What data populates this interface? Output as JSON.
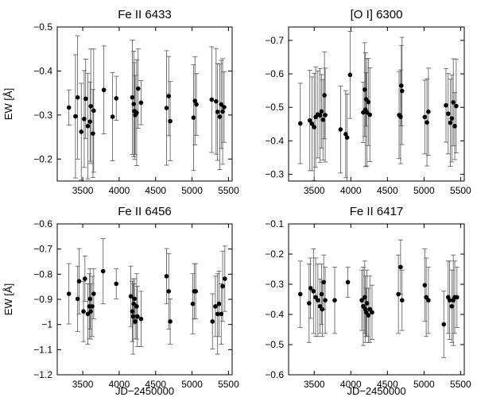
{
  "chart_data": [
    {
      "type": "scatter",
      "title": "Fe II 6433",
      "xlabel": "",
      "ylabel": "EW [Å]",
      "xlim": [
        3150,
        5550
      ],
      "ylim": [
        -0.15,
        -0.5
      ],
      "y_axis_inverted": true,
      "xticks": [
        3500,
        4000,
        4500,
        5000,
        5500
      ],
      "xtick_labels": [
        "3500",
        "4000",
        "4500",
        "5000",
        "5500"
      ],
      "yticks": [
        -0.2,
        -0.3,
        -0.4,
        -0.5
      ],
      "ytick_labels": [
        "−0.2",
        "−0.3",
        "−0.4",
        "−0.5"
      ],
      "series": [
        {
          "x": [
            3310,
            3400,
            3430,
            3480,
            3520,
            3540,
            3570,
            3600,
            3610,
            3640,
            3650,
            3790,
            3910,
            3960,
            4180,
            4200,
            4210,
            4220,
            4240,
            4260,
            4300,
            4650,
            4680,
            4700,
            5020,
            5040,
            5060,
            5270,
            5330,
            5350,
            5380,
            5400,
            5420,
            5440
          ],
          "y": [
            -0.317,
            -0.297,
            -0.34,
            -0.262,
            -0.291,
            -0.337,
            -0.275,
            -0.285,
            -0.32,
            -0.258,
            -0.31,
            -0.357,
            -0.296,
            -0.338,
            -0.34,
            -0.325,
            -0.309,
            -0.3,
            -0.305,
            -0.36,
            -0.328,
            -0.316,
            -0.343,
            -0.286,
            -0.294,
            -0.332,
            -0.324,
            -0.335,
            -0.331,
            -0.307,
            -0.296,
            -0.324,
            -0.308,
            -0.318
          ],
          "yerr": [
            0.04,
            0.14,
            0.14,
            0.11,
            0.11,
            0.09,
            0.12,
            0.09,
            0.13,
            0.1,
            0.14,
            0.1,
            0.1,
            0.05,
            0.13,
            0.12,
            0.11,
            0.09,
            0.12,
            0.09,
            0.05,
            0.13,
            0.09,
            0.09,
            0.12,
            0.1,
            0.07,
            0.12,
            0.12,
            0.11,
            0.12,
            0.1,
            0.12,
            0.08
          ]
        }
      ]
    },
    {
      "type": "scatter",
      "title": "[O I] 6300",
      "xlabel": "",
      "ylabel": "",
      "xlim": [
        3150,
        5550
      ],
      "ylim": [
        -0.28,
        -0.74
      ],
      "y_axis_inverted": true,
      "xticks": [
        3500,
        4000,
        4500,
        5000,
        5500
      ],
      "xtick_labels": [
        "3500",
        "4000",
        "4500",
        "5000",
        "5500"
      ],
      "yticks": [
        -0.3,
        -0.4,
        -0.5,
        -0.6,
        -0.7
      ],
      "ytick_labels": [
        "−0.3",
        "−0.4",
        "−0.5",
        "−0.6",
        "−0.7"
      ],
      "series": [
        {
          "x": [
            3310,
            3440,
            3470,
            3500,
            3520,
            3550,
            3580,
            3600,
            3620,
            3640,
            3650,
            3860,
            3930,
            3950,
            3990,
            4170,
            4190,
            4200,
            4210,
            4220,
            4240,
            4260,
            4660,
            4680,
            4690,
            4700,
            5010,
            5040,
            5060,
            5300,
            5330,
            5360,
            5380,
            5400,
            5420,
            5440
          ],
          "y": [
            -0.452,
            -0.461,
            -0.451,
            -0.441,
            -0.471,
            -0.479,
            -0.476,
            -0.488,
            -0.463,
            -0.536,
            -0.477,
            -0.434,
            -0.42,
            -0.41,
            -0.597,
            -0.485,
            -0.553,
            -0.493,
            -0.524,
            -0.485,
            -0.516,
            -0.478,
            -0.477,
            -0.472,
            -0.565,
            -0.549,
            -0.471,
            -0.455,
            -0.487,
            -0.506,
            -0.481,
            -0.454,
            -0.467,
            -0.515,
            -0.444,
            -0.504
          ],
          "yerr": [
            0.12,
            0.15,
            0.14,
            0.16,
            0.15,
            0.13,
            0.14,
            0.11,
            0.12,
            0.13,
            0.14,
            0.13,
            0.13,
            0.13,
            0.13,
            0.09,
            0.14,
            0.17,
            0.08,
            0.16,
            0.13,
            0.14,
            0.13,
            0.14,
            0.12,
            0.16,
            0.11,
            0.13,
            0.13,
            0.11,
            0.12,
            0.13,
            0.13,
            0.13,
            0.1,
            0.14
          ]
        }
      ]
    },
    {
      "type": "scatter",
      "title": "Fe II 6456",
      "xlabel": "JD−2450000",
      "ylabel": "EW [Å]",
      "xlim": [
        3150,
        5550
      ],
      "ylim": [
        -1.2,
        -0.6
      ],
      "y_axis_inverted": false,
      "xticks": [
        3500,
        4000,
        4500,
        5000,
        5500
      ],
      "xtick_labels": [
        "3500",
        "4000",
        "4500",
        "5000",
        "5500"
      ],
      "yticks": [
        -1.2,
        -1.1,
        -1.0,
        -0.9,
        -0.8,
        -0.7,
        -0.6
      ],
      "ytick_labels": [
        "−1.2",
        "−1.1",
        "−1",
        "−0.9",
        "−0.8",
        "−0.7",
        "−0.6"
      ],
      "series": [
        {
          "x": [
            3310,
            3430,
            3450,
            3510,
            3530,
            3570,
            3590,
            3600,
            3610,
            3630,
            3650,
            3780,
            3960,
            4160,
            4180,
            4190,
            4200,
            4210,
            4220,
            4240,
            4250,
            4300,
            4650,
            4680,
            4700,
            5010,
            5030,
            5050,
            5280,
            5320,
            5350,
            5370,
            5400,
            5420,
            5450
          ],
          "y": [
            -0.878,
            -0.898,
            -0.828,
            -0.948,
            -0.818,
            -0.958,
            -0.928,
            -0.898,
            -0.948,
            -0.928,
            -0.878,
            -0.788,
            -0.838,
            -0.888,
            -0.948,
            -0.968,
            -0.918,
            -0.898,
            -0.988,
            -0.928,
            -0.968,
            -0.978,
            -0.808,
            -0.868,
            -0.988,
            -0.918,
            -0.868,
            -0.868,
            -0.988,
            -0.928,
            -0.958,
            -0.918,
            -0.958,
            -0.848,
            -0.818
          ],
          "yerr": [
            0.12,
            0.13,
            0.13,
            0.12,
            0.09,
            0.12,
            0.13,
            0.12,
            0.11,
            0.12,
            0.1,
            0.13,
            0.06,
            0.12,
            0.12,
            0.15,
            0.08,
            0.08,
            0.07,
            0.13,
            0.12,
            0.11,
            0.11,
            0.15,
            0.09,
            0.12,
            0.11,
            0.11,
            0.11,
            0.12,
            0.16,
            0.13,
            0.12,
            0.14,
            0.13
          ]
        }
      ]
    },
    {
      "type": "scatter",
      "title": "Fe II 6417",
      "xlabel": "JD−2450000",
      "ylabel": "",
      "xlim": [
        3150,
        5550
      ],
      "ylim": [
        -0.6,
        -0.1
      ],
      "y_axis_inverted": false,
      "xticks": [
        3500,
        4000,
        4500,
        5000,
        5500
      ],
      "xtick_labels": [
        "3500",
        "4000",
        "4500",
        "5000",
        "5500"
      ],
      "yticks": [
        -0.6,
        -0.5,
        -0.4,
        -0.3,
        -0.2,
        -0.1
      ],
      "ytick_labels": [
        "−0.6",
        "−0.5",
        "−0.4",
        "−0.3",
        "−0.2",
        "−0.1"
      ],
      "series": [
        {
          "x": [
            3310,
            3430,
            3450,
            3490,
            3520,
            3550,
            3580,
            3600,
            3610,
            3630,
            3650,
            3780,
            3960,
            4150,
            4170,
            4190,
            4200,
            4210,
            4220,
            4240,
            4260,
            4290,
            4650,
            4680,
            4700,
            5010,
            5030,
            5060,
            5270,
            5330,
            5350,
            5380,
            5400,
            5420,
            5450
          ],
          "y": [
            -0.333,
            -0.363,
            -0.313,
            -0.323,
            -0.343,
            -0.353,
            -0.373,
            -0.333,
            -0.383,
            -0.293,
            -0.353,
            -0.353,
            -0.293,
            -0.353,
            -0.373,
            -0.343,
            -0.383,
            -0.393,
            -0.363,
            -0.403,
            -0.383,
            -0.393,
            -0.333,
            -0.243,
            -0.353,
            -0.303,
            -0.343,
            -0.353,
            -0.433,
            -0.343,
            -0.353,
            -0.373,
            -0.353,
            -0.343,
            -0.343
          ],
          "yerr": [
            0.11,
            0.13,
            0.1,
            0.14,
            0.13,
            0.12,
            0.09,
            0.1,
            0.09,
            0.09,
            0.11,
            0.11,
            0.05,
            0.1,
            0.13,
            0.12,
            0.11,
            0.08,
            0.11,
            0.09,
            0.11,
            0.09,
            0.13,
            0.09,
            0.1,
            0.12,
            0.13,
            0.11,
            0.11,
            0.12,
            0.13,
            0.12,
            0.15,
            0.12,
            0.1
          ]
        }
      ]
    }
  ]
}
